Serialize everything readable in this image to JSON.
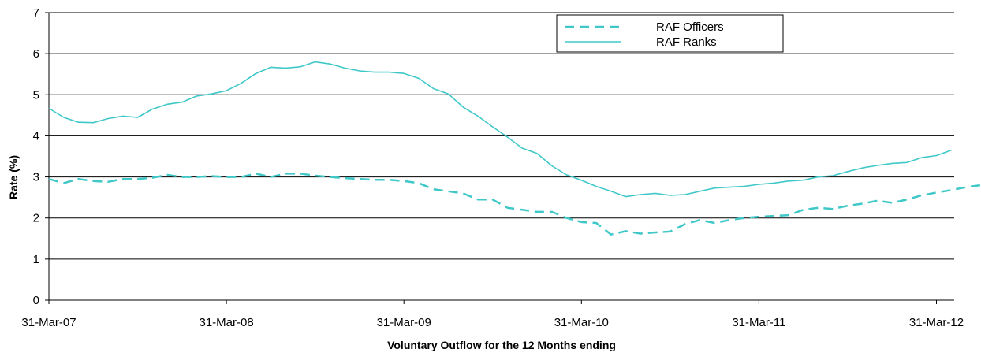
{
  "chart_data": {
    "type": "line",
    "title": "",
    "xlabel": "Voluntary Outflow for the 12 Months ending",
    "ylabel": "Rate (%)",
    "ylim": [
      0,
      7
    ],
    "yticks": [
      "0",
      "1",
      "2",
      "3",
      "4",
      "5",
      "6",
      "7"
    ],
    "xticks": [
      "31-Mar-07",
      "31-Mar-08",
      "31-Mar-09",
      "31-Mar-10",
      "31-Mar-11",
      "31-Mar-12"
    ],
    "x_unit": "months from 31-Mar-07",
    "grid": "horizontal",
    "legend_position": "top-right",
    "colors": {
      "line": "#40C8C8",
      "grid": "#000000",
      "axis": "#000000"
    },
    "series": [
      {
        "name": "RAF Officers",
        "style": "dashed",
        "values": [
          2.95,
          2.85,
          2.95,
          2.9,
          2.88,
          2.95,
          2.95,
          2.98,
          3.05,
          3.0,
          3.0,
          3.02,
          3.0,
          3.0,
          3.08,
          3.0,
          3.08,
          3.08,
          3.03,
          3.0,
          2.97,
          2.95,
          2.93,
          2.93,
          2.9,
          2.85,
          2.7,
          2.65,
          2.6,
          2.45,
          2.45,
          2.25,
          2.2,
          2.15,
          2.15,
          2.0,
          1.9,
          1.88,
          1.6,
          1.68,
          1.62,
          1.65,
          1.67,
          1.85,
          1.95,
          1.88,
          1.95,
          2.0,
          2.03,
          2.05,
          2.07,
          2.2,
          2.25,
          2.22,
          2.3,
          2.35,
          2.42,
          2.37,
          2.45,
          2.55,
          2.62,
          2.68,
          2.75,
          2.8
        ]
      },
      {
        "name": "RAF Ranks",
        "style": "solid",
        "values": [
          4.67,
          4.45,
          4.33,
          4.32,
          4.42,
          4.48,
          4.45,
          4.65,
          4.77,
          4.82,
          4.97,
          5.02,
          5.1,
          5.28,
          5.52,
          5.67,
          5.65,
          5.68,
          5.8,
          5.75,
          5.65,
          5.58,
          5.55,
          5.55,
          5.52,
          5.4,
          5.15,
          5.02,
          4.7,
          4.48,
          4.22,
          3.97,
          3.7,
          3.57,
          3.27,
          3.05,
          2.92,
          2.77,
          2.65,
          2.52,
          2.57,
          2.6,
          2.55,
          2.57,
          2.65,
          2.73,
          2.75,
          2.77,
          2.82,
          2.85,
          2.9,
          2.92,
          3.0,
          3.03,
          3.13,
          3.22,
          3.28,
          3.33,
          3.35,
          3.47,
          3.52,
          3.65
        ]
      }
    ]
  }
}
